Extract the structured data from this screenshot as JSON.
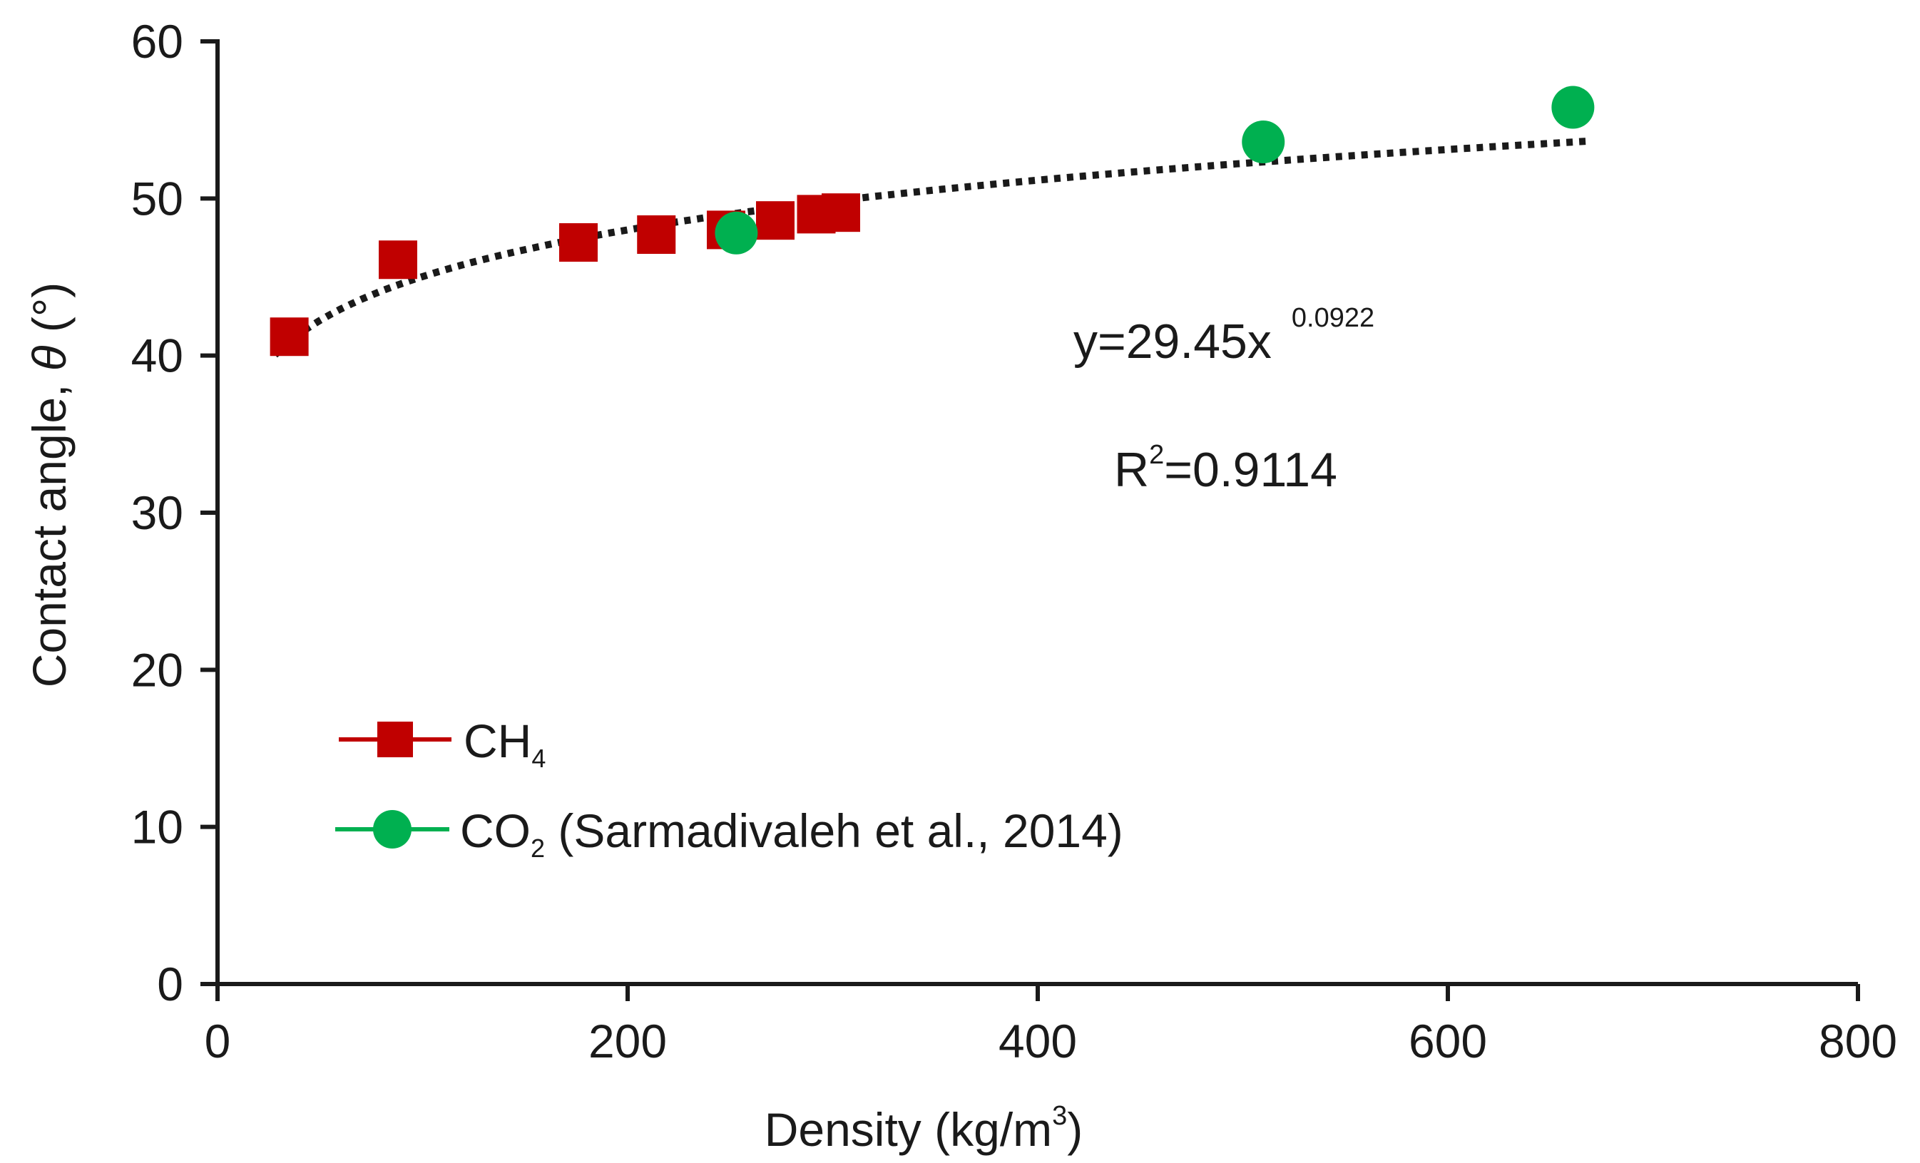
{
  "chart_data": {
    "type": "scatter",
    "title": "",
    "xlabel": "Density (kg/m",
    "xlabel_sup": "3",
    "xlabel_end": ")",
    "ylabel": "Contact angle, ",
    "ylabel_symbol": "θ",
    "ylabel_unit": " (°)",
    "xlim": [
      0,
      800
    ],
    "ylim": [
      0,
      60
    ],
    "x_ticks": [
      0,
      200,
      400,
      600,
      800
    ],
    "y_ticks": [
      0,
      10,
      20,
      30,
      40,
      50,
      60
    ],
    "grid": false,
    "legend_position": "lower-left",
    "series": [
      {
        "name": "CH",
        "name_sub": "4",
        "name_suffix": "",
        "marker": "square",
        "color": "#c00000",
        "x": [
          35,
          88,
          176,
          214,
          248,
          272,
          292,
          304
        ],
        "y": [
          41.2,
          46.1,
          47.2,
          47.7,
          48.0,
          48.6,
          49.0,
          49.1
        ]
      },
      {
        "name": "CO",
        "name_sub": "2",
        "name_suffix": " (Sarmadivaleh et al., 2014)",
        "marker": "circle",
        "color": "#00b050",
        "x": [
          253,
          510,
          661
        ],
        "y": [
          47.8,
          53.6,
          55.8
        ]
      }
    ],
    "fit": {
      "a": 29.45,
      "b": 0.0922,
      "x_range": [
        28,
        668
      ],
      "color": "#1a1a1a",
      "equation_main": "y=29.45x",
      "equation_exp": "0.0922",
      "r2_main": "R",
      "r2_sup": "2",
      "r2_value": "=0.9114"
    }
  }
}
